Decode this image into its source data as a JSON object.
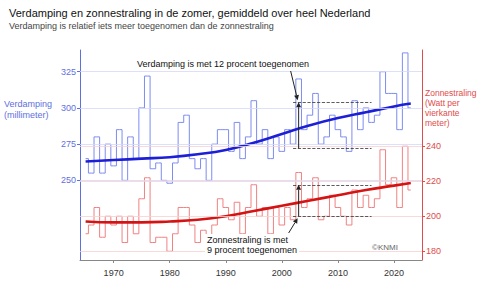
{
  "chart_data": {
    "type": "line",
    "title": "Verdamping en zonnestraling in de zomer, gemiddeld over heel Nederland",
    "subtitle": "Verdamping is relatief iets meer toegenomen dan de zonnestraling",
    "y_label": "Verdamping\n(millimeter)",
    "y2_label": "Zonnestraling\n(Watt per\nvierkante\nmeter)",
    "credit": "©KNMI",
    "grid": true,
    "xlim": [
      1964,
      2025
    ],
    "xticks": [
      1970,
      1980,
      1990,
      2000,
      2010,
      2020
    ],
    "ylim": [
      195,
      340
    ],
    "yticks": [
      250,
      275,
      300,
      325
    ],
    "y2lim": [
      175,
      295
    ],
    "y2ticks": [
      180,
      200,
      220,
      240
    ],
    "x": [
      1965,
      1966,
      1967,
      1968,
      1969,
      1970,
      1971,
      1972,
      1973,
      1974,
      1975,
      1976,
      1977,
      1978,
      1979,
      1980,
      1981,
      1982,
      1983,
      1984,
      1985,
      1986,
      1987,
      1988,
      1989,
      1990,
      1991,
      1992,
      1993,
      1994,
      1995,
      1996,
      1997,
      1998,
      1999,
      2000,
      2001,
      2002,
      2003,
      2004,
      2005,
      2006,
      2007,
      2008,
      2009,
      2010,
      2011,
      2012,
      2013,
      2014,
      2015,
      2016,
      2017,
      2018,
      2019,
      2020,
      2021,
      2022,
      2023
    ],
    "series": [
      {
        "axis": "y",
        "color": "#7d8cf0",
        "line_style": "step",
        "values": [
          265,
          255,
          280,
          255,
          275,
          260,
          285,
          250,
          280,
          265,
          300,
          322,
          258,
          262,
          250,
          248,
          262,
          290,
          295,
          265,
          258,
          265,
          250,
          275,
          285,
          285,
          270,
          290,
          265,
          280,
          305,
          275,
          285,
          265,
          280,
          270,
          285,
          275,
          320,
          285,
          295,
          310,
          275,
          280,
          295,
          285,
          280,
          270,
          305,
          285,
          300,
          290,
          295,
          325,
          310,
          310,
          285,
          338,
          300
        ]
      },
      {
        "axis": "y",
        "color": "#1c1fd6",
        "line_style": "solid",
        "x": [
          1965,
          1970,
          1975,
          1980,
          1985,
          1990,
          1995,
          2000,
          2005,
          2010,
          2015,
          2020,
          2023
        ],
        "values": [
          263,
          264,
          265,
          266,
          268,
          271,
          276,
          282,
          288,
          293,
          297,
          301,
          303
        ],
        "dashed_levels": [
          272,
          304
        ],
        "dashed_x": [
          2002,
          2016
        ],
        "annotation": "Verdamping is met 12 procent toegenomen"
      },
      {
        "axis": "y2",
        "color": "#f08282",
        "line_style": "step",
        "values": [
          190,
          195,
          205,
          188,
          200,
          195,
          200,
          185,
          200,
          190,
          210,
          222,
          185,
          188,
          188,
          180,
          190,
          205,
          205,
          195,
          185,
          192,
          182,
          195,
          210,
          205,
          198,
          208,
          190,
          205,
          218,
          200,
          205,
          190,
          205,
          195,
          205,
          198,
          225,
          205,
          210,
          222,
          198,
          200,
          212,
          205,
          200,
          195,
          215,
          205,
          212,
          205,
          210,
          238,
          218,
          222,
          205,
          240,
          215
        ]
      },
      {
        "axis": "y2",
        "color": "#d41414",
        "line_style": "solid",
        "x": [
          1965,
          1970,
          1975,
          1980,
          1985,
          1990,
          1995,
          2000,
          2005,
          2010,
          2015,
          2020,
          2023
        ],
        "values": [
          197,
          196.5,
          196.5,
          197,
          198,
          200,
          203,
          206,
          209,
          212,
          215,
          217.5,
          219
        ],
        "dashed_levels": [
          200,
          218
        ],
        "dashed_x": [
          2002,
          2016
        ],
        "annotation": "Zonnestraling is met\n9 procent toegenomen"
      }
    ]
  }
}
